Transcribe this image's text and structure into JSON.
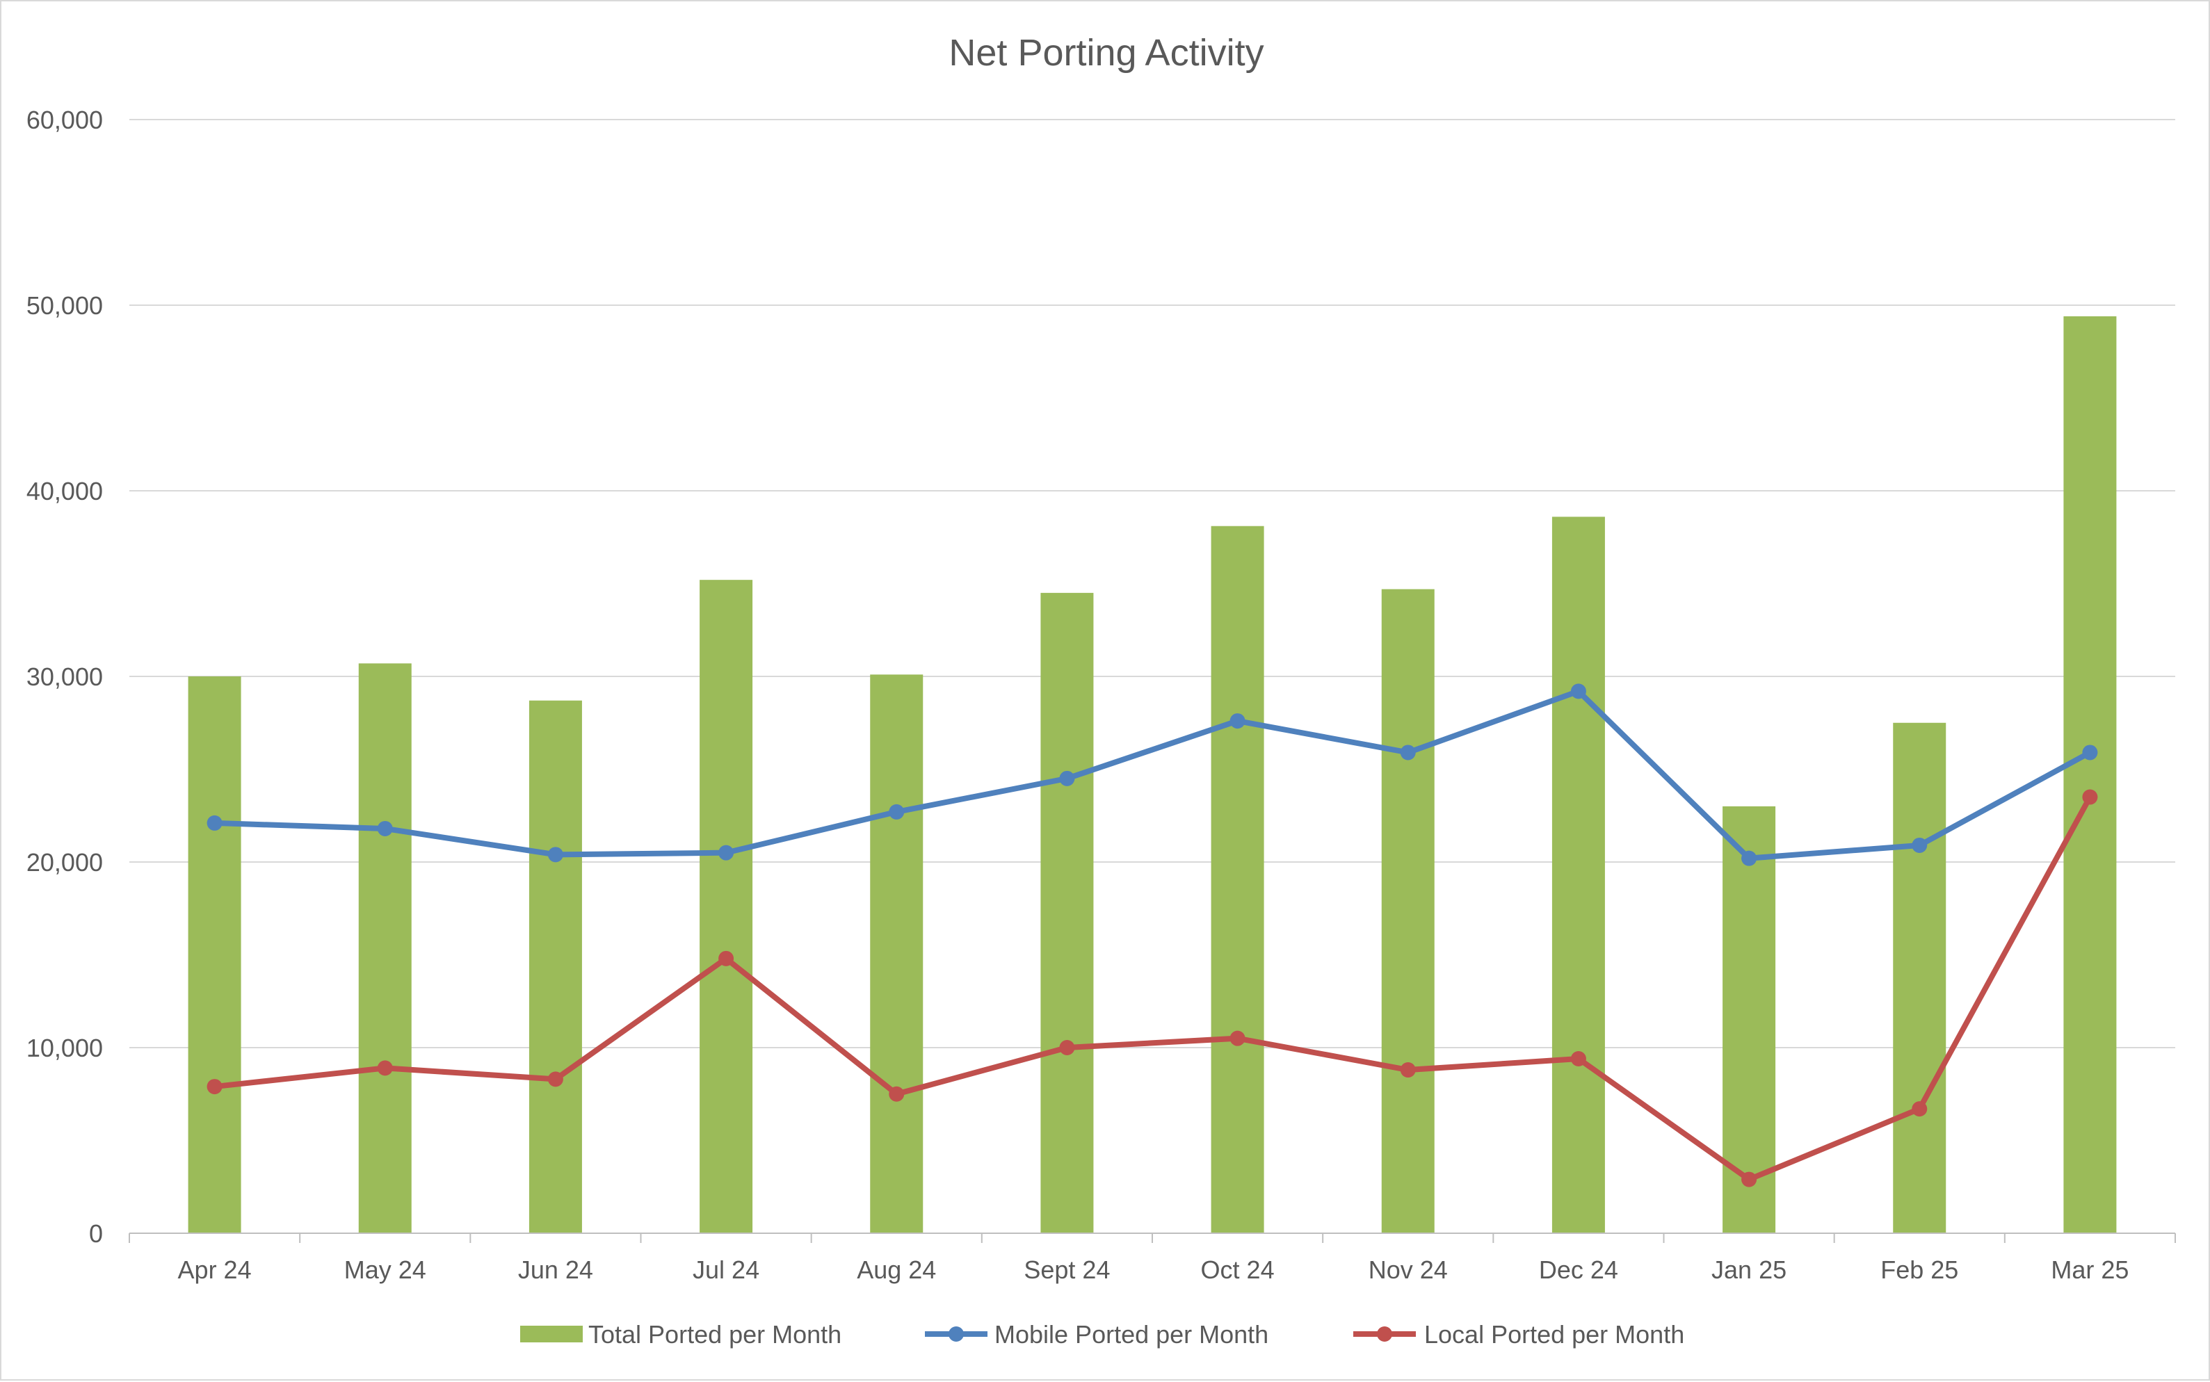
{
  "chart_data": {
    "type": "bar",
    "title": "Net Porting Activity",
    "xlabel": "",
    "ylabel": "",
    "ylim": [
      0,
      60000
    ],
    "yticks": [
      "0",
      "10,000",
      "20,000",
      "30,000",
      "40,000",
      "50,000",
      "60,000"
    ],
    "grid": true,
    "legend_position": "bottom",
    "categories": [
      "Apr 24",
      "May 24",
      "Jun 24",
      "Jul 24",
      "Aug 24",
      "Sept 24",
      "Oct 24",
      "Nov 24",
      "Dec 24",
      "Jan 25",
      "Feb 25",
      "Mar 25"
    ],
    "series": [
      {
        "name": "Total Ported per Month",
        "kind": "bar",
        "color": "#9bbb59",
        "values": [
          30000,
          30700,
          28700,
          35200,
          30100,
          34500,
          38100,
          34700,
          38600,
          23000,
          27500,
          49400
        ]
      },
      {
        "name": "Mobile Ported per Month",
        "kind": "line",
        "color": "#4f81bd",
        "values": [
          22100,
          21800,
          20400,
          20500,
          22700,
          24500,
          27600,
          25900,
          29200,
          20200,
          20900,
          25900
        ]
      },
      {
        "name": "Local Ported per Month",
        "kind": "line",
        "color": "#c0504d",
        "values": [
          7900,
          8900,
          8300,
          14800,
          7500,
          10000,
          10500,
          8800,
          9400,
          2900,
          6700,
          23500
        ]
      }
    ]
  }
}
